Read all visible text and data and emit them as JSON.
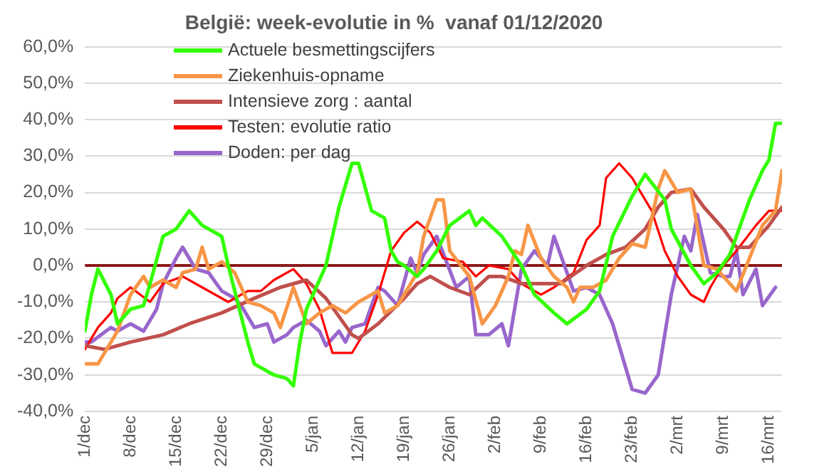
{
  "chart_data": {
    "type": "line",
    "title": "België: week-evolutie in %  vanaf 01/12/2020",
    "xlim": [
      "2020-12-01",
      "2021-03-18"
    ],
    "xticks": [
      {
        "value": "2020-12-01",
        "label": "1/dec"
      },
      {
        "value": "2020-12-08",
        "label": "8/dec"
      },
      {
        "value": "2020-12-15",
        "label": "15/dec"
      },
      {
        "value": "2020-12-22",
        "label": "22/dec"
      },
      {
        "value": "2020-12-29",
        "label": "29/dec"
      },
      {
        "value": "2021-01-05",
        "label": "5/jan"
      },
      {
        "value": "2021-01-12",
        "label": "12/jan"
      },
      {
        "value": "2021-01-19",
        "label": "19/jan"
      },
      {
        "value": "2021-01-26",
        "label": "26/jan"
      },
      {
        "value": "2021-02-02",
        "label": "2/feb"
      },
      {
        "value": "2021-02-09",
        "label": "9/feb"
      },
      {
        "value": "2021-02-16",
        "label": "16/feb"
      },
      {
        "value": "2021-02-23",
        "label": "23/feb"
      },
      {
        "value": "2021-03-02",
        "label": "2/mrt"
      },
      {
        "value": "2021-03-09",
        "label": "9/mrt"
      },
      {
        "value": "2021-03-16",
        "label": "16/mrt"
      }
    ],
    "ylim": [
      -40,
      60
    ],
    "yticks": [
      {
        "value": -40,
        "label": "-40,0%"
      },
      {
        "value": -30,
        "label": "-30,0%"
      },
      {
        "value": -20,
        "label": "-20,0%"
      },
      {
        "value": -10,
        "label": "-10,0%"
      },
      {
        "value": 0,
        "label": "0,0%"
      },
      {
        "value": 10,
        "label": "10,0%"
      },
      {
        "value": 20,
        "label": "20,0%"
      },
      {
        "value": 30,
        "label": "30,0%"
      },
      {
        "value": 40,
        "label": "40,0%"
      },
      {
        "value": 50,
        "label": "50,0%"
      },
      {
        "value": 60,
        "label": "60,0%"
      }
    ],
    "grid": "y",
    "legend": "top left",
    "marker": "none",
    "line_style": "solid",
    "ref_lines": [
      {
        "axis": "y",
        "value": 0,
        "color": "#8b1a1a"
      }
    ],
    "series": [
      {
        "name": "Actuele besmettingscijfers",
        "color": "#33ff00",
        "x": [
          "2020-12-01",
          "2020-12-02",
          "2020-12-03",
          "2020-12-05",
          "2020-12-06",
          "2020-12-08",
          "2020-12-10",
          "2020-12-11",
          "2020-12-13",
          "2020-12-15",
          "2020-12-17",
          "2020-12-19",
          "2020-12-22",
          "2020-12-23",
          "2020-12-24",
          "2020-12-26",
          "2020-12-27",
          "2020-12-30",
          "2021-01-01",
          "2021-01-02",
          "2021-01-03",
          "2021-01-04",
          "2021-01-07",
          "2021-01-09",
          "2021-01-11",
          "2021-01-12",
          "2021-01-14",
          "2021-01-16",
          "2021-01-17",
          "2021-01-18",
          "2021-01-19",
          "2021-01-21",
          "2021-01-22",
          "2021-01-24",
          "2021-01-26",
          "2021-01-29",
          "2021-01-30",
          "2021-01-31",
          "2021-02-03",
          "2021-02-06",
          "2021-02-08",
          "2021-02-11",
          "2021-02-13",
          "2021-02-16",
          "2021-02-18",
          "2021-02-20",
          "2021-02-23",
          "2021-02-25",
          "2021-02-28",
          "2021-03-01",
          "2021-03-04",
          "2021-03-06",
          "2021-03-08",
          "2021-03-10",
          "2021-03-13",
          "2021-03-15",
          "2021-03-16",
          "2021-03-17",
          "2021-03-18"
        ],
        "values": [
          -18,
          -8,
          -1,
          -8,
          -16,
          -12,
          -11,
          -5,
          8,
          10,
          15,
          11,
          8,
          0,
          -7,
          -21,
          -27,
          -30,
          -31,
          -33,
          -21,
          -12,
          0,
          16,
          28,
          28,
          15,
          13,
          4,
          1,
          0,
          -3,
          -1,
          4,
          11,
          15,
          11,
          13,
          8,
          0,
          -8,
          -13,
          -16,
          -12,
          -7,
          8,
          19,
          25,
          18,
          10,
          0,
          -5,
          -2,
          3,
          18,
          26,
          29,
          39,
          39
        ]
      },
      {
        "name": "Ziekenhuis-opname",
        "color": "#f79646",
        "x": [
          "2020-12-01",
          "2020-12-03",
          "2020-12-04",
          "2020-12-06",
          "2020-12-08",
          "2020-12-10",
          "2020-12-11",
          "2020-12-13",
          "2020-12-15",
          "2020-12-16",
          "2020-12-18",
          "2020-12-19",
          "2020-12-20",
          "2020-12-22",
          "2020-12-24",
          "2020-12-26",
          "2020-12-28",
          "2020-12-30",
          "2020-12-31",
          "2021-01-02",
          "2021-01-04",
          "2021-01-06",
          "2021-01-08",
          "2021-01-10",
          "2021-01-12",
          "2021-01-15",
          "2021-01-16",
          "2021-01-18",
          "2021-01-21",
          "2021-01-22",
          "2021-01-24",
          "2021-01-25",
          "2021-01-26",
          "2021-01-29",
          "2021-01-31",
          "2021-02-02",
          "2021-02-04",
          "2021-02-05",
          "2021-02-06",
          "2021-02-07",
          "2021-02-09",
          "2021-02-11",
          "2021-02-13",
          "2021-02-14",
          "2021-02-15",
          "2021-02-17",
          "2021-02-19",
          "2021-02-21",
          "2021-02-23",
          "2021-02-25",
          "2021-02-27",
          "2021-02-28",
          "2021-03-02",
          "2021-03-04",
          "2021-03-06",
          "2021-03-08",
          "2021-03-10",
          "2021-03-11",
          "2021-03-13",
          "2021-03-15",
          "2021-03-17",
          "2021-03-18"
        ],
        "values": [
          -27,
          -27,
          -24,
          -18,
          -8,
          -3,
          -6,
          -4,
          -6,
          -2,
          -1,
          5,
          -1,
          1,
          -2,
          -10,
          -11,
          -13,
          -17,
          -6,
          -16,
          -13,
          -11,
          -13,
          -10,
          -7,
          -13,
          -11,
          -2,
          8,
          18,
          18,
          4,
          -3,
          -16,
          -11,
          -3,
          4,
          3,
          11,
          2,
          -3,
          -6,
          -10,
          -6,
          -6,
          -4,
          2,
          6,
          5,
          21,
          26,
          20,
          21,
          0,
          -1,
          -5,
          -7,
          2,
          11,
          15,
          26
        ]
      },
      {
        "name": "Intensieve zorg : aantal",
        "color": "#c0504d",
        "x": [
          "2020-12-01",
          "2020-12-04",
          "2020-12-08",
          "2020-12-13",
          "2020-12-17",
          "2020-12-22",
          "2020-12-27",
          "2020-12-31",
          "2021-01-04",
          "2021-01-07",
          "2021-01-11",
          "2021-01-12",
          "2021-01-15",
          "2021-01-19",
          "2021-01-21",
          "2021-01-23",
          "2021-01-26",
          "2021-01-29",
          "2021-02-01",
          "2021-02-03",
          "2021-02-06",
          "2021-02-09",
          "2021-02-12",
          "2021-02-16",
          "2021-02-19",
          "2021-02-22",
          "2021-02-25",
          "2021-02-27",
          "2021-03-01",
          "2021-03-04",
          "2021-03-06",
          "2021-03-09",
          "2021-03-11",
          "2021-03-13",
          "2021-03-16",
          "2021-03-18"
        ],
        "values": [
          -22,
          -23,
          -21,
          -19,
          -16,
          -13,
          -9,
          -6,
          -4,
          -9,
          -19,
          -20,
          -16,
          -9,
          -5,
          -3,
          -6,
          -8,
          -3,
          -3,
          -5,
          -5,
          -5,
          0,
          3,
          5,
          10,
          16,
          20,
          21,
          16,
          10,
          5,
          5,
          11,
          16
        ]
      },
      {
        "name": "Testen: evolutie ratio",
        "color": "#ff0000",
        "x": [
          "2020-12-01",
          "2020-12-03",
          "2020-12-05",
          "2020-12-06",
          "2020-12-08",
          "2020-12-11",
          "2020-12-13",
          "2020-12-16",
          "2020-12-19",
          "2020-12-21",
          "2020-12-23",
          "2020-12-26",
          "2020-12-28",
          "2020-12-30",
          "2021-01-02",
          "2021-01-04",
          "2021-01-06",
          "2021-01-08",
          "2021-01-11",
          "2021-01-13",
          "2021-01-15",
          "2021-01-17",
          "2021-01-19",
          "2021-01-21",
          "2021-01-23",
          "2021-01-25",
          "2021-01-28",
          "2021-01-30",
          "2021-02-01",
          "2021-02-04",
          "2021-02-06",
          "2021-02-09",
          "2021-02-11",
          "2021-02-14",
          "2021-02-16",
          "2021-02-18",
          "2021-02-19",
          "2021-02-21",
          "2021-02-23",
          "2021-02-26",
          "2021-02-28",
          "2021-03-02",
          "2021-03-04",
          "2021-03-06",
          "2021-03-07",
          "2021-03-09",
          "2021-03-11",
          "2021-03-14",
          "2021-03-16",
          "2021-03-18"
        ],
        "values": [
          -23,
          -17,
          -13,
          -9,
          -6,
          -10,
          -5,
          -3,
          -6,
          -8,
          -10,
          -7,
          -7,
          -4,
          -1,
          -5,
          -12,
          -24,
          -24,
          -18,
          -8,
          4,
          9,
          12,
          9,
          2,
          1,
          -3,
          0,
          -1,
          -5,
          -8,
          -6,
          -2,
          7,
          11,
          24,
          28,
          24,
          15,
          4,
          -3,
          -8,
          -10,
          -6,
          0,
          4,
          11,
          15,
          15
        ]
      },
      {
        "name": "Doden: per dag",
        "color": "#9966cc",
        "x": [
          "2020-12-01",
          "2020-12-02",
          "2020-12-05",
          "2020-12-06",
          "2020-12-08",
          "2020-12-10",
          "2020-12-12",
          "2020-12-13",
          "2020-12-15",
          "2020-12-16",
          "2020-12-18",
          "2020-12-20",
          "2020-12-22",
          "2020-12-24",
          "2020-12-25",
          "2020-12-27",
          "2020-12-29",
          "2020-12-30",
          "2021-01-01",
          "2021-01-02",
          "2021-01-04",
          "2021-01-06",
          "2021-01-07",
          "2021-01-09",
          "2021-01-10",
          "2021-01-11",
          "2021-01-13",
          "2021-01-15",
          "2021-01-16",
          "2021-01-18",
          "2021-01-20",
          "2021-01-21",
          "2021-01-22",
          "2021-01-24",
          "2021-01-27",
          "2021-01-29",
          "2021-01-30",
          "2021-02-01",
          "2021-02-03",
          "2021-02-04",
          "2021-02-06",
          "2021-02-08",
          "2021-02-10",
          "2021-02-11",
          "2021-02-14",
          "2021-02-16",
          "2021-02-18",
          "2021-02-20",
          "2021-02-22",
          "2021-02-23",
          "2021-02-25",
          "2021-02-27",
          "2021-03-01",
          "2021-03-03",
          "2021-03-04",
          "2021-03-05",
          "2021-03-07",
          "2021-03-09",
          "2021-03-10",
          "2021-03-11",
          "2021-03-12",
          "2021-03-14",
          "2021-03-15",
          "2021-03-17"
        ],
        "values": [
          -21,
          -21,
          -17,
          -18,
          -16,
          -18,
          -12,
          -5,
          2,
          5,
          -1,
          -2,
          -7,
          -9,
          -11,
          -17,
          -16,
          -21,
          -19,
          -17,
          -15,
          -18,
          -22,
          -18,
          -21,
          -17,
          -16,
          -6,
          -7,
          -11,
          2,
          -2,
          3,
          8,
          -6,
          -3,
          -19,
          -19,
          -16,
          -22,
          -1,
          4,
          0,
          8,
          -7,
          -6,
          -8,
          -16,
          -28,
          -34,
          -35,
          -30,
          -8,
          8,
          4,
          14,
          -2,
          -3,
          -3,
          4,
          -8,
          -1,
          -11,
          -6
        ]
      }
    ]
  }
}
